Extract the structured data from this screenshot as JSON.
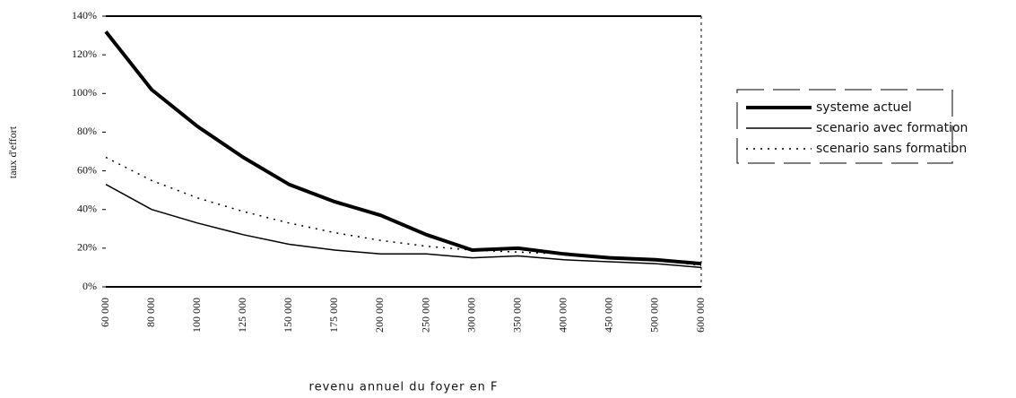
{
  "chart_data": {
    "type": "line",
    "x_label": "revenu annuel du foyer en F",
    "y_label": "taux d'effort",
    "categories": [
      "60 000",
      "80 000",
      "100 000",
      "125 000",
      "150 000",
      "175 000",
      "200 000",
      "250 000",
      "300 000",
      "350 000",
      "400 000",
      "450 000",
      "500 000",
      "600 000"
    ],
    "series": [
      {
        "name": "systeme actuel",
        "color": "#000000",
        "width": 4,
        "style": "solid",
        "values": [
          132,
          102,
          83,
          67,
          53,
          44,
          37,
          27,
          19,
          20,
          17,
          15,
          14,
          12
        ]
      },
      {
        "name": "scenario avec formation",
        "color": "#000000",
        "width": 1.5,
        "style": "solid",
        "values": [
          53,
          40,
          33,
          27,
          22,
          19,
          17,
          17,
          15,
          16,
          14,
          13,
          12,
          10
        ]
      },
      {
        "name": "scenario sans formation",
        "color": "#000000",
        "width": 1.5,
        "style": "dotted",
        "values": [
          67,
          55,
          46,
          39,
          33,
          28,
          24,
          21,
          19,
          18,
          17,
          15,
          14,
          11
        ]
      }
    ],
    "ylim": [
      0,
      140
    ],
    "yticks": [
      {
        "value": 0,
        "label": "0%"
      },
      {
        "value": 20,
        "label": "20%"
      },
      {
        "value": 40,
        "label": "40%"
      },
      {
        "value": 60,
        "label": "60%"
      },
      {
        "value": 80,
        "label": "80%"
      },
      {
        "value": 100,
        "label": "100%"
      },
      {
        "value": 120,
        "label": "120%"
      },
      {
        "value": 140,
        "label": "140%"
      }
    ],
    "grid": false
  }
}
